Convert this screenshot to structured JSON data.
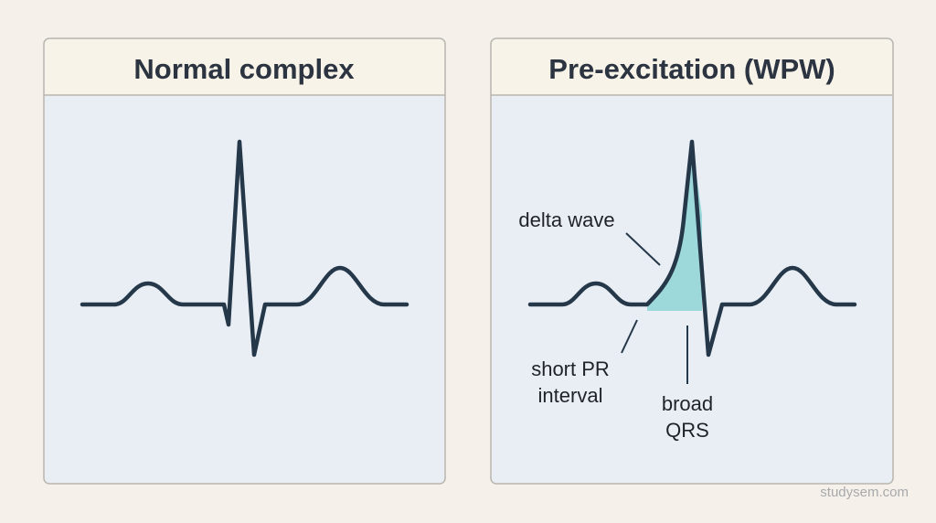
{
  "panels": [
    {
      "title": "Normal complex"
    },
    {
      "title": "Pre-excitation (WPW)",
      "annotations": {
        "delta_wave": "delta wave",
        "short_pr": [
          "short PR",
          "interval"
        ],
        "broad_qrs": [
          "broad",
          "QRS"
        ]
      }
    }
  ],
  "watermark": "studysem.com"
}
